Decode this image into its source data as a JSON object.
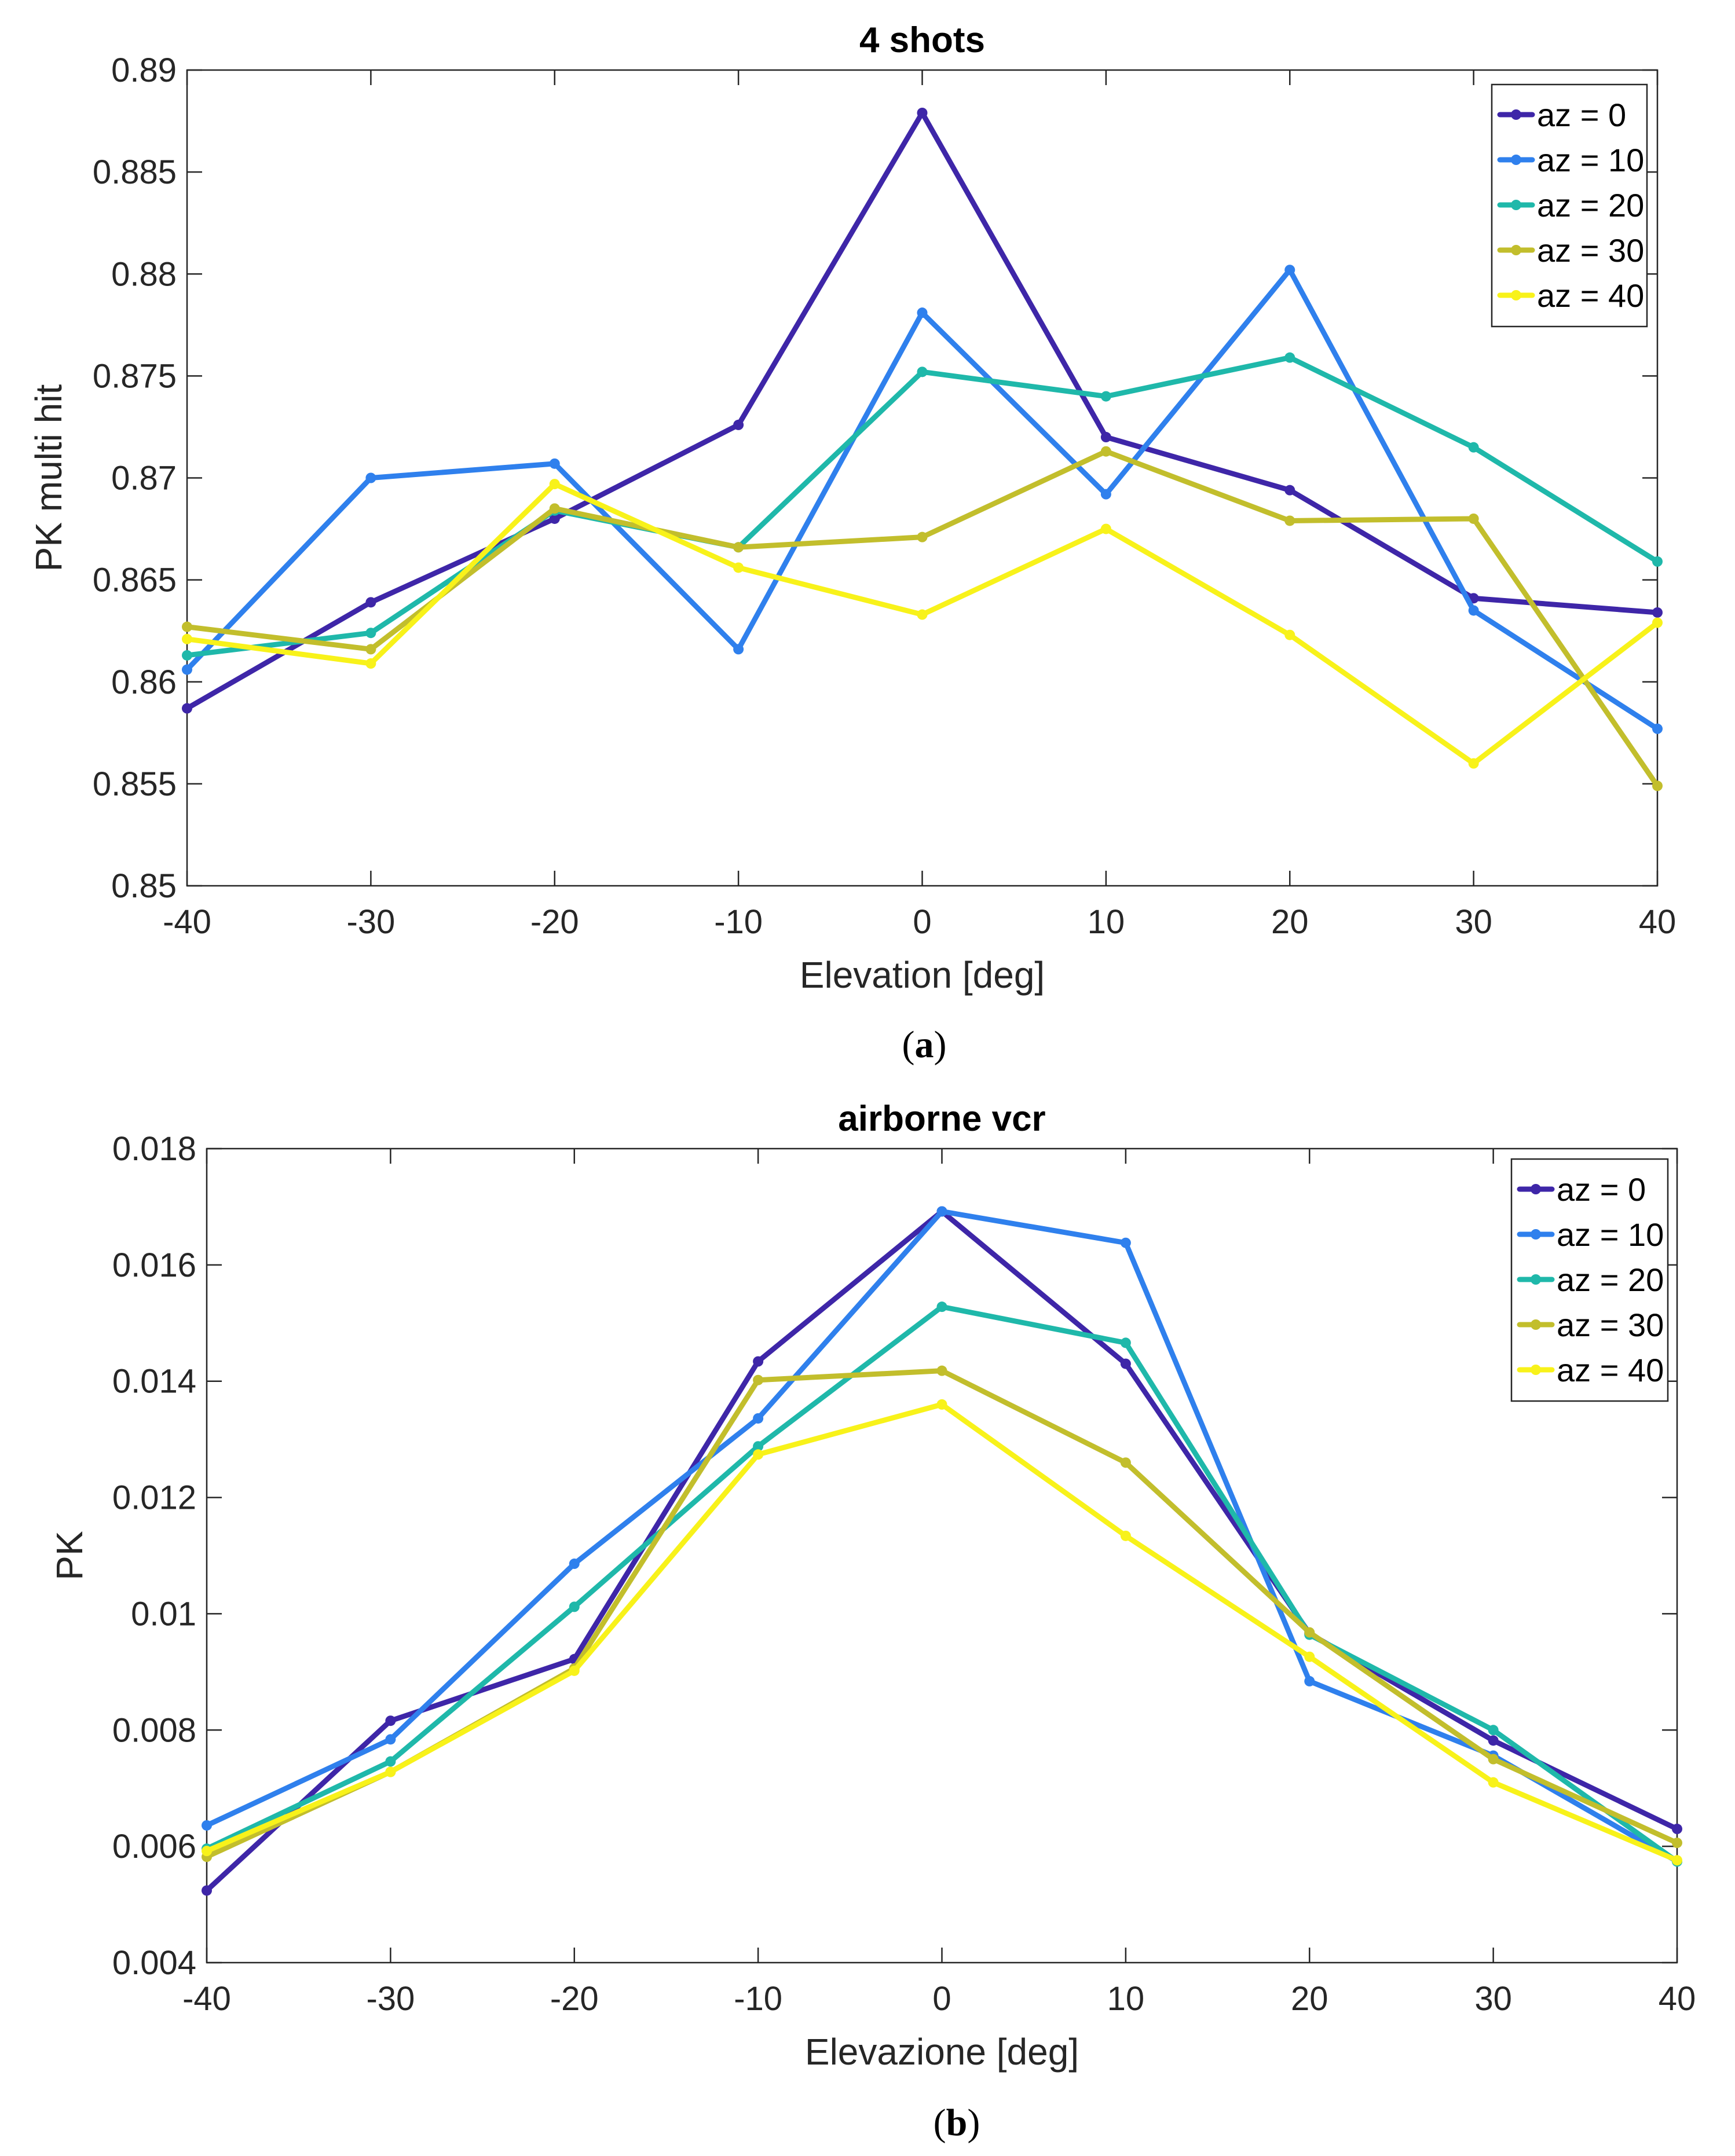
{
  "figure": {
    "captions": [
      "(a)",
      "(b)"
    ],
    "caption_labels": [
      "a",
      "b"
    ]
  },
  "chart_data": [
    {
      "type": "line",
      "title": "4 shots",
      "xlabel": "Elevation [deg]",
      "ylabel": "PK multi hit",
      "x": [
        -40,
        -30,
        -20,
        -10,
        0,
        10,
        20,
        30,
        40
      ],
      "xlim": [
        -40,
        40
      ],
      "ylim": [
        0.85,
        0.89
      ],
      "xticks": [
        -40,
        -30,
        -20,
        -10,
        0,
        10,
        20,
        30,
        40
      ],
      "yticks": [
        0.85,
        0.855,
        0.86,
        0.865,
        0.87,
        0.875,
        0.88,
        0.885,
        0.89
      ],
      "xtick_labels": [
        "-40",
        "-30",
        "-20",
        "-10",
        "0",
        "10",
        "20",
        "30",
        "40"
      ],
      "ytick_labels": [
        "0.85",
        "0.855",
        "0.86",
        "0.865",
        "0.87",
        "0.875",
        "0.88",
        "0.885",
        "0.89"
      ],
      "grid": false,
      "legend_position": "top-right",
      "series": [
        {
          "name": "az = 0",
          "color": "#3E26A8",
          "values": [
            0.8587,
            0.8639,
            0.868,
            0.8726,
            0.8879,
            0.872,
            0.8694,
            0.8641,
            0.8634
          ]
        },
        {
          "name": "az = 10",
          "color": "#2F80ED",
          "values": [
            0.8606,
            0.87,
            0.8707,
            0.8616,
            0.8781,
            0.8692,
            0.8802,
            0.8635,
            0.8577
          ]
        },
        {
          "name": "az = 20",
          "color": "#1FB8AA",
          "values": [
            0.8613,
            0.8624,
            0.8684,
            0.8666,
            0.8752,
            0.874,
            0.8759,
            0.8715,
            0.8659
          ]
        },
        {
          "name": "az = 30",
          "color": "#C2BE2C",
          "values": [
            0.8627,
            0.8616,
            0.8685,
            0.8666,
            0.8671,
            0.8713,
            0.8679,
            0.868,
            0.8549
          ]
        },
        {
          "name": "az = 40",
          "color": "#F8F21A",
          "values": [
            0.8621,
            0.8609,
            0.8697,
            0.8656,
            0.8633,
            0.8675,
            0.8623,
            0.856,
            0.8629
          ]
        }
      ]
    },
    {
      "type": "line",
      "title": "airborne vcr",
      "xlabel": "Elevazione [deg]",
      "ylabel": "PK",
      "x": [
        -40,
        -30,
        -20,
        -10,
        0,
        10,
        20,
        30,
        40
      ],
      "xlim": [
        -40,
        40
      ],
      "ylim": [
        0.004,
        0.018
      ],
      "xticks": [
        -40,
        -30,
        -20,
        -10,
        0,
        10,
        20,
        30,
        40
      ],
      "yticks": [
        0.004,
        0.006,
        0.008,
        0.01,
        0.012,
        0.014,
        0.016,
        0.018
      ],
      "xtick_labels": [
        "-40",
        "-30",
        "-20",
        "-10",
        "0",
        "10",
        "20",
        "30",
        "40"
      ],
      "ytick_labels": [
        "0.004",
        "0.006",
        "0.008",
        "0.01",
        "0.012",
        "0.014",
        "0.016",
        "0.018"
      ],
      "grid": false,
      "legend_position": "top-right",
      "series": [
        {
          "name": "az = 0",
          "color": "#3E26A8",
          "values": [
            0.00524,
            0.00816,
            0.00922,
            0.01434,
            0.01692,
            0.0143,
            0.00966,
            0.00782,
            0.0063
          ]
        },
        {
          "name": "az = 10",
          "color": "#2F80ED",
          "values": [
            0.00636,
            0.00784,
            0.01086,
            0.01336,
            0.01692,
            0.01638,
            0.00884,
            0.00756,
            0.00574
          ]
        },
        {
          "name": "az = 20",
          "color": "#1FB8AA",
          "values": [
            0.00596,
            0.00746,
            0.01012,
            0.01288,
            0.01528,
            0.01466,
            0.00964,
            0.008,
            0.00574
          ]
        },
        {
          "name": "az = 30",
          "color": "#C2BE2C",
          "values": [
            0.00582,
            0.00728,
            0.00906,
            0.01402,
            0.01418,
            0.0126,
            0.00968,
            0.0075,
            0.00606
          ]
        },
        {
          "name": "az = 40",
          "color": "#F8F21A",
          "values": [
            0.00592,
            0.00728,
            0.00902,
            0.01274,
            0.0136,
            0.01134,
            0.00926,
            0.0071,
            0.00576
          ]
        }
      ]
    }
  ]
}
